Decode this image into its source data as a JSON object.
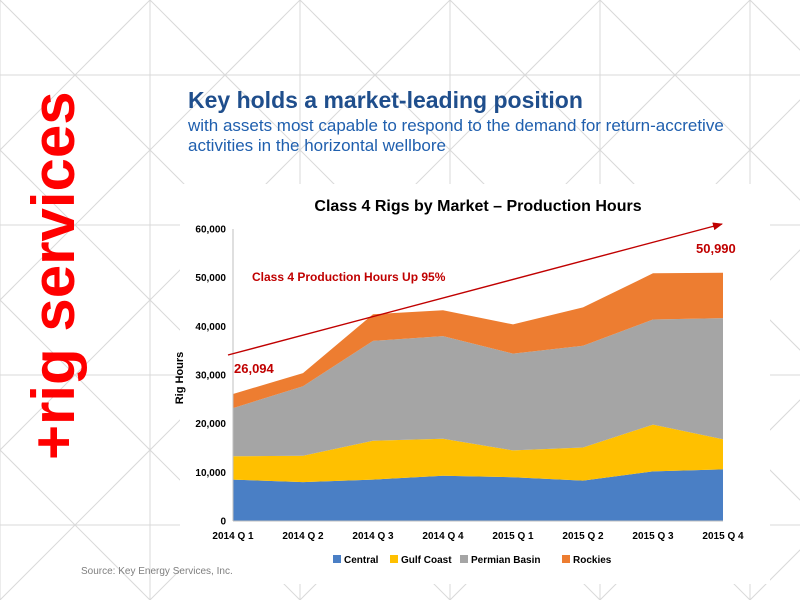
{
  "side_label": "+rig services",
  "headline": "Key holds a market-leading position",
  "subheadline": "with assets most capable to respond to the demand for return-accretive activities in the horizontal wellbore",
  "source": "Source: Key Energy Services, Inc.",
  "colors": {
    "side_label": "#ff0000",
    "headline": "#1f4e8c",
    "subheadline": "#1f5fae",
    "annotation": "#c00000",
    "grid_lines": "#d9d9d9"
  },
  "chart_data": {
    "type": "area",
    "stacked": true,
    "title": "Class 4 Rigs by Market – Production Hours",
    "xlabel": "",
    "ylabel": "Rig Hours",
    "categories": [
      "2014 Q 1",
      "2014 Q 2",
      "2014 Q 3",
      "2014 Q 4",
      "2015 Q 1",
      "2015 Q 2",
      "2015 Q 3",
      "2015 Q 4"
    ],
    "ylim": [
      0,
      60000
    ],
    "yticks": [
      0,
      10000,
      20000,
      30000,
      40000,
      50000,
      60000
    ],
    "ytick_labels": [
      "0",
      "10,000",
      "20,000",
      "30,000",
      "40,000",
      "50,000",
      "60,000"
    ],
    "grid": false,
    "legend_position": "bottom",
    "series": [
      {
        "name": "Central",
        "color": "#4a7fc5",
        "values": [
          8500,
          8000,
          8500,
          9300,
          9000,
          8300,
          10200,
          10600
        ]
      },
      {
        "name": "Gulf Coast",
        "color": "#ffc000",
        "values": [
          4800,
          5400,
          8000,
          7600,
          5500,
          6800,
          9600,
          6200
        ]
      },
      {
        "name": "Permian Basin",
        "color": "#a5a5a5",
        "values": [
          9900,
          14300,
          20500,
          21100,
          19900,
          20900,
          21600,
          24900
        ]
      },
      {
        "name": "Rockies",
        "color": "#ed7d31",
        "values": [
          2894,
          2700,
          5500,
          5300,
          6000,
          7900,
          9500,
          9290
        ]
      }
    ],
    "annotations": [
      {
        "text": "Class 4 Production Hours Up 95%",
        "type": "trend-arrow"
      },
      {
        "text": "26,094",
        "category": "2014 Q 1"
      },
      {
        "text": "50,990",
        "category": "2015 Q 4"
      }
    ]
  }
}
